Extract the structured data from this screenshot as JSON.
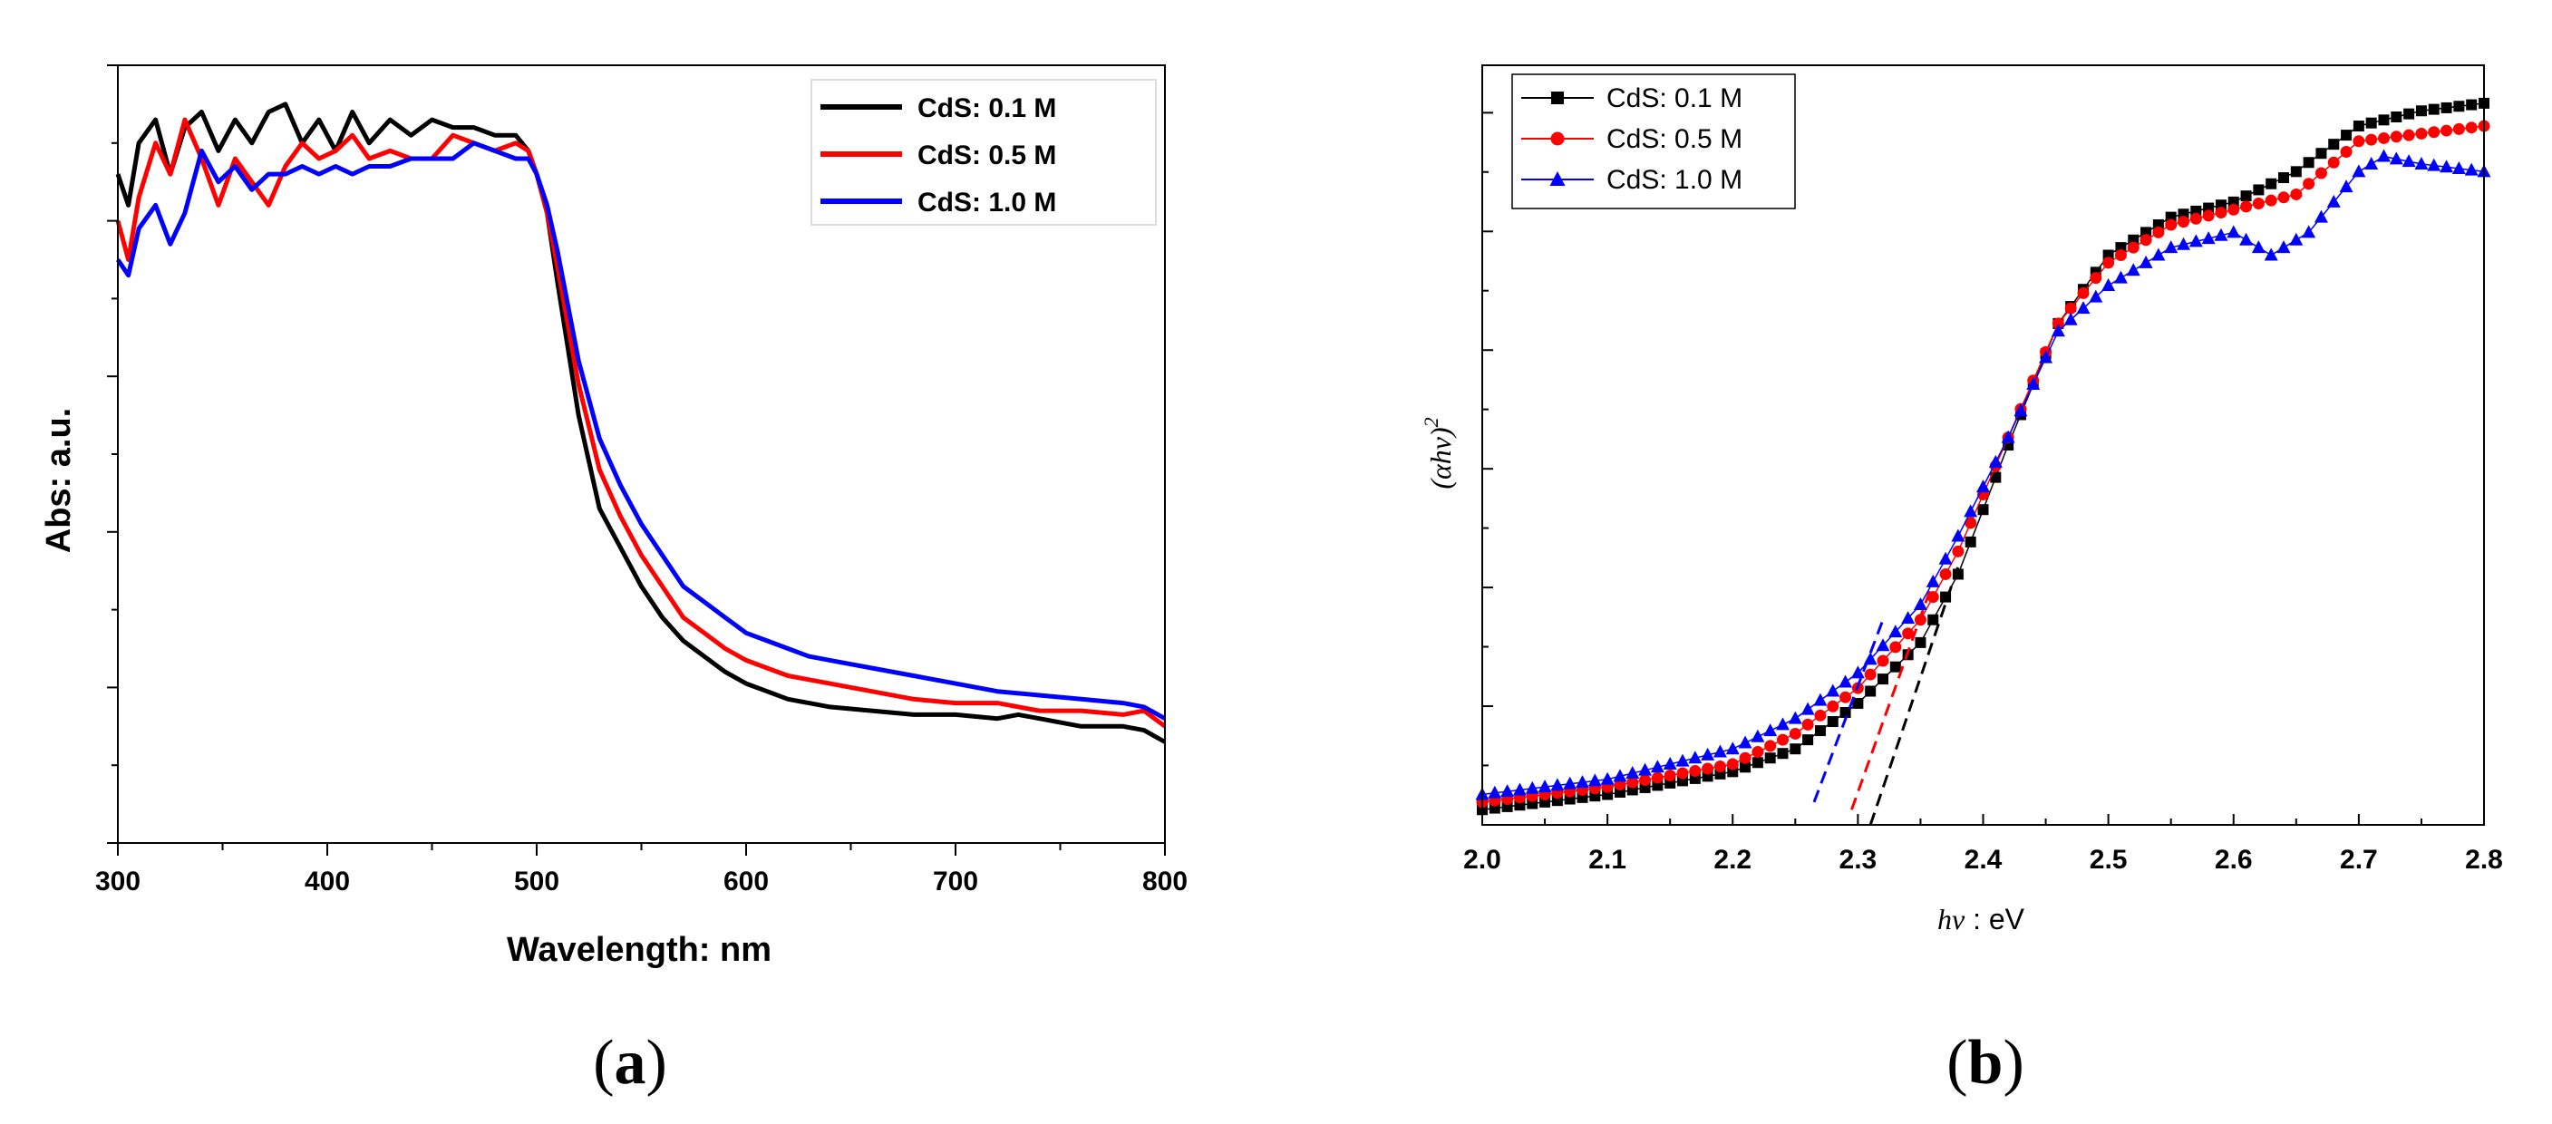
{
  "colors": {
    "black": "#000000",
    "red": "#ff0000",
    "blue": "#0000ff"
  },
  "panels": {
    "a_prefix": "(",
    "a_letter": "a",
    "a_suffix": ")",
    "b_prefix": "(",
    "b_letter": "b",
    "b_suffix": ")"
  },
  "chart_data": [
    {
      "id": "a",
      "type": "line",
      "title": "",
      "xlabel": "Wavelength: nm",
      "ylabel": "Abs: a.u.",
      "xlim": [
        300,
        800
      ],
      "ylim": [
        0,
        1
      ],
      "xticks": [
        300,
        400,
        500,
        600,
        700,
        800
      ],
      "xtick_labels": [
        "300",
        "400",
        "500",
        "600",
        "700",
        "800"
      ],
      "legend_position": "top-right",
      "series": [
        {
          "name": "CdS: 0.1 M",
          "color": "#000000",
          "x": [
            300,
            305,
            310,
            318,
            325,
            332,
            340,
            348,
            356,
            364,
            372,
            380,
            388,
            396,
            404,
            412,
            420,
            430,
            440,
            450,
            460,
            470,
            480,
            490,
            496,
            500,
            505,
            510,
            520,
            530,
            540,
            550,
            560,
            570,
            580,
            590,
            600,
            610,
            620,
            630,
            640,
            660,
            680,
            700,
            720,
            730,
            740,
            760,
            780,
            790,
            800
          ],
          "y": [
            0.86,
            0.82,
            0.9,
            0.93,
            0.86,
            0.92,
            0.94,
            0.89,
            0.93,
            0.9,
            0.94,
            0.95,
            0.9,
            0.93,
            0.89,
            0.94,
            0.9,
            0.93,
            0.91,
            0.93,
            0.92,
            0.92,
            0.91,
            0.91,
            0.89,
            0.86,
            0.81,
            0.72,
            0.55,
            0.43,
            0.38,
            0.33,
            0.29,
            0.26,
            0.24,
            0.22,
            0.205,
            0.195,
            0.185,
            0.18,
            0.175,
            0.17,
            0.165,
            0.165,
            0.16,
            0.165,
            0.16,
            0.15,
            0.15,
            0.145,
            0.13
          ]
        },
        {
          "name": "CdS: 0.5 M",
          "color": "#ff0000",
          "x": [
            300,
            305,
            310,
            318,
            325,
            332,
            340,
            348,
            356,
            364,
            372,
            380,
            388,
            396,
            404,
            412,
            420,
            430,
            440,
            450,
            460,
            470,
            480,
            490,
            496,
            500,
            505,
            510,
            520,
            530,
            540,
            550,
            560,
            570,
            580,
            590,
            600,
            610,
            620,
            630,
            640,
            660,
            680,
            700,
            720,
            740,
            760,
            780,
            790,
            800
          ],
          "y": [
            0.8,
            0.75,
            0.83,
            0.9,
            0.86,
            0.93,
            0.88,
            0.82,
            0.88,
            0.85,
            0.82,
            0.87,
            0.9,
            0.88,
            0.89,
            0.91,
            0.88,
            0.89,
            0.88,
            0.88,
            0.91,
            0.9,
            0.89,
            0.9,
            0.89,
            0.86,
            0.81,
            0.74,
            0.59,
            0.48,
            0.42,
            0.37,
            0.33,
            0.29,
            0.27,
            0.25,
            0.235,
            0.225,
            0.215,
            0.21,
            0.205,
            0.195,
            0.185,
            0.18,
            0.18,
            0.17,
            0.17,
            0.165,
            0.17,
            0.15
          ]
        },
        {
          "name": "CdS: 1.0 M",
          "color": "#0000ff",
          "x": [
            300,
            305,
            310,
            318,
            325,
            332,
            340,
            348,
            356,
            364,
            372,
            380,
            388,
            396,
            404,
            412,
            420,
            430,
            440,
            450,
            460,
            470,
            480,
            490,
            496,
            500,
            505,
            510,
            520,
            530,
            540,
            550,
            560,
            570,
            580,
            590,
            600,
            610,
            620,
            630,
            640,
            660,
            680,
            700,
            720,
            740,
            760,
            780,
            790,
            800
          ],
          "y": [
            0.75,
            0.73,
            0.79,
            0.82,
            0.77,
            0.81,
            0.89,
            0.85,
            0.87,
            0.84,
            0.86,
            0.86,
            0.87,
            0.86,
            0.87,
            0.86,
            0.87,
            0.87,
            0.88,
            0.88,
            0.88,
            0.9,
            0.89,
            0.88,
            0.88,
            0.86,
            0.82,
            0.76,
            0.62,
            0.52,
            0.46,
            0.41,
            0.37,
            0.33,
            0.31,
            0.29,
            0.27,
            0.26,
            0.25,
            0.24,
            0.235,
            0.225,
            0.215,
            0.205,
            0.195,
            0.19,
            0.185,
            0.18,
            0.175,
            0.16
          ]
        }
      ]
    },
    {
      "id": "b",
      "type": "scatter",
      "title": "",
      "xlabel_var": "hν",
      "xlabel_unit": " : eV",
      "ylabel_base": "(αhν)",
      "ylabel_exp": "2",
      "xlim": [
        2.0,
        2.8
      ],
      "ylim": [
        0,
        1
      ],
      "xticks": [
        2.0,
        2.1,
        2.2,
        2.3,
        2.4,
        2.5,
        2.6,
        2.7,
        2.8
      ],
      "xtick_labels": [
        "2.0",
        "2.1",
        "2.2",
        "2.3",
        "2.4",
        "2.5",
        "2.6",
        "2.7",
        "2.8"
      ],
      "legend_position": "top-left",
      "series": [
        {
          "name": "CdS: 0.1 M",
          "color": "#000000",
          "marker": "square",
          "knots_x": [
            2.0,
            2.1,
            2.2,
            2.25,
            2.3,
            2.35,
            2.38,
            2.42,
            2.46,
            2.5,
            2.55,
            2.6,
            2.65,
            2.7,
            2.75,
            2.8
          ],
          "knots_y": [
            0.02,
            0.04,
            0.07,
            0.1,
            0.16,
            0.24,
            0.33,
            0.5,
            0.66,
            0.75,
            0.8,
            0.82,
            0.86,
            0.92,
            0.94,
            0.95
          ],
          "tangent_x": [
            2.31,
            2.38
          ],
          "tangent_y": [
            0.0,
            0.34
          ]
        },
        {
          "name": "CdS: 0.5 M",
          "color": "#ff0000",
          "marker": "circle",
          "knots_x": [
            2.0,
            2.1,
            2.2,
            2.25,
            2.3,
            2.35,
            2.38,
            2.42,
            2.46,
            2.5,
            2.55,
            2.6,
            2.65,
            2.7,
            2.75,
            2.8
          ],
          "knots_y": [
            0.03,
            0.05,
            0.08,
            0.12,
            0.18,
            0.27,
            0.36,
            0.51,
            0.66,
            0.74,
            0.79,
            0.81,
            0.83,
            0.9,
            0.91,
            0.92
          ],
          "tangent_x": [
            2.295,
            2.36
          ],
          "tangent_y": [
            0.02,
            0.32
          ]
        },
        {
          "name": "CdS: 1.0 M",
          "color": "#0000ff",
          "marker": "triangle",
          "knots_x": [
            2.0,
            2.1,
            2.2,
            2.25,
            2.3,
            2.35,
            2.38,
            2.42,
            2.46,
            2.5,
            2.55,
            2.6,
            2.63,
            2.66,
            2.7,
            2.72,
            2.75,
            2.8
          ],
          "knots_y": [
            0.04,
            0.06,
            0.1,
            0.14,
            0.2,
            0.29,
            0.38,
            0.51,
            0.65,
            0.71,
            0.76,
            0.78,
            0.75,
            0.78,
            0.86,
            0.88,
            0.87,
            0.86
          ],
          "tangent_x": [
            2.265,
            2.32
          ],
          "tangent_y": [
            0.03,
            0.27
          ]
        }
      ]
    }
  ]
}
